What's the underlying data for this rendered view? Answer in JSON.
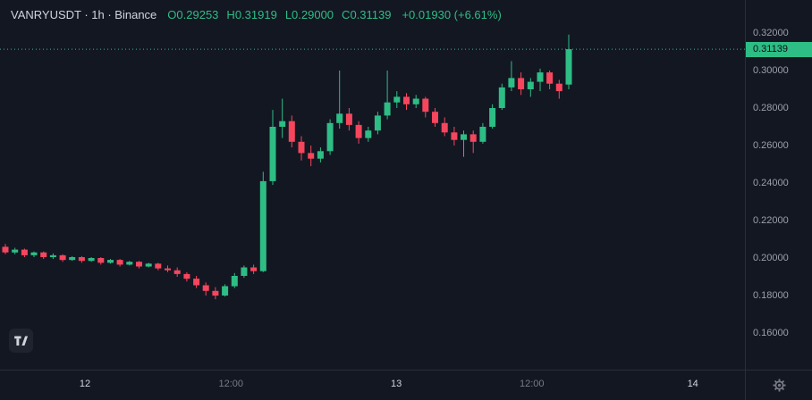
{
  "legend": {
    "title": "VANRYUSDT · 1h · Binance",
    "o_label": "O",
    "o": "0.29253",
    "h_label": "H",
    "h": "0.31919",
    "l_label": "L",
    "l": "0.29000",
    "c_label": "C",
    "c": "0.31139",
    "change": "+0.01930 (+6.61%)"
  },
  "colors": {
    "background": "#131722",
    "up": "#2ebd85",
    "down": "#f6465d",
    "axis_border": "#2a2e39",
    "axis_text": "#9aa0aa",
    "text": "#d1d4dc",
    "badge_text": "#0b0e11",
    "current_price_line": "#2ebd85"
  },
  "price_axis": {
    "last_price_label": "0.31139"
  },
  "icons": {
    "settings": "gear-icon",
    "logo": "tradingview-logo"
  },
  "chart_data": {
    "type": "candlestick",
    "title": "VANRYUSDT · 1h · Binance",
    "symbol": "VANRYUSDT",
    "interval": "1h",
    "exchange": "Binance",
    "last_bar": {
      "open": 0.29253,
      "high": 0.31919,
      "low": 0.29,
      "close": 0.31139,
      "change": "+0.01930",
      "change_pct": "+6.61%"
    },
    "current_price": 0.31139,
    "ylim": [
      0.1405,
      0.3376
    ],
    "grid": false,
    "price_ticks": [
      0.32,
      0.3,
      0.28,
      0.26,
      0.24,
      0.22,
      0.2,
      0.18,
      0.16
    ],
    "time_ticks": [
      {
        "label": "12",
        "pos": 0.114,
        "major": true
      },
      {
        "label": "12:00",
        "pos": 0.31,
        "major": false
      },
      {
        "label": "13",
        "pos": 0.532,
        "major": true
      },
      {
        "label": "12:00",
        "pos": 0.714,
        "major": false
      },
      {
        "label": "14",
        "pos": 0.93,
        "major": true
      }
    ],
    "candles": [
      [
        0.206,
        0.2075,
        0.202,
        0.203
      ],
      [
        0.203,
        0.2055,
        0.202,
        0.2045
      ],
      [
        0.2045,
        0.205,
        0.2005,
        0.2015
      ],
      [
        0.2015,
        0.2035,
        0.2005,
        0.203
      ],
      [
        0.203,
        0.2035,
        0.1995,
        0.2005
      ],
      [
        0.2005,
        0.2025,
        0.1995,
        0.2015
      ],
      [
        0.2015,
        0.202,
        0.198,
        0.199
      ],
      [
        0.199,
        0.201,
        0.1985,
        0.2005
      ],
      [
        0.2005,
        0.201,
        0.1975,
        0.1985
      ],
      [
        0.1985,
        0.2005,
        0.198,
        0.2
      ],
      [
        0.2,
        0.2005,
        0.1965,
        0.1975
      ],
      [
        0.1975,
        0.1995,
        0.197,
        0.199
      ],
      [
        0.199,
        0.1995,
        0.1955,
        0.1965
      ],
      [
        0.1965,
        0.1985,
        0.196,
        0.198
      ],
      [
        0.198,
        0.1985,
        0.1945,
        0.1955
      ],
      [
        0.1955,
        0.1975,
        0.195,
        0.197
      ],
      [
        0.197,
        0.1975,
        0.1935,
        0.1945
      ],
      [
        0.1945,
        0.196,
        0.1925,
        0.1935
      ],
      [
        0.1935,
        0.195,
        0.19,
        0.1915
      ],
      [
        0.1915,
        0.1925,
        0.1875,
        0.189
      ],
      [
        0.189,
        0.1905,
        0.184,
        0.1855
      ],
      [
        0.1855,
        0.187,
        0.18,
        0.1825
      ],
      [
        0.1825,
        0.1845,
        0.178,
        0.18
      ],
      [
        0.18,
        0.186,
        0.1795,
        0.185
      ],
      [
        0.185,
        0.192,
        0.184,
        0.1905
      ],
      [
        0.1905,
        0.196,
        0.1895,
        0.195
      ],
      [
        0.195,
        0.1965,
        0.1915,
        0.193
      ],
      [
        0.193,
        0.246,
        0.1925,
        0.241
      ],
      [
        0.241,
        0.279,
        0.239,
        0.27
      ],
      [
        0.27,
        0.285,
        0.264,
        0.273
      ],
      [
        0.273,
        0.276,
        0.259,
        0.262
      ],
      [
        0.262,
        0.265,
        0.252,
        0.256
      ],
      [
        0.256,
        0.26,
        0.249,
        0.253
      ],
      [
        0.253,
        0.259,
        0.251,
        0.257
      ],
      [
        0.257,
        0.274,
        0.255,
        0.272
      ],
      [
        0.272,
        0.3,
        0.269,
        0.277
      ],
      [
        0.277,
        0.28,
        0.268,
        0.271
      ],
      [
        0.271,
        0.273,
        0.261,
        0.264
      ],
      [
        0.264,
        0.27,
        0.262,
        0.268
      ],
      [
        0.268,
        0.278,
        0.266,
        0.276
      ],
      [
        0.276,
        0.3,
        0.274,
        0.283
      ],
      [
        0.283,
        0.289,
        0.28,
        0.286
      ],
      [
        0.286,
        0.288,
        0.279,
        0.282
      ],
      [
        0.282,
        0.287,
        0.28,
        0.285
      ],
      [
        0.285,
        0.286,
        0.275,
        0.278
      ],
      [
        0.278,
        0.28,
        0.27,
        0.272
      ],
      [
        0.272,
        0.275,
        0.265,
        0.267
      ],
      [
        0.267,
        0.27,
        0.26,
        0.263
      ],
      [
        0.263,
        0.268,
        0.254,
        0.266
      ],
      [
        0.266,
        0.268,
        0.256,
        0.262
      ],
      [
        0.262,
        0.272,
        0.261,
        0.27
      ],
      [
        0.27,
        0.282,
        0.269,
        0.28
      ],
      [
        0.28,
        0.293,
        0.279,
        0.291
      ],
      [
        0.291,
        0.305,
        0.289,
        0.296
      ],
      [
        0.296,
        0.299,
        0.287,
        0.29
      ],
      [
        0.29,
        0.296,
        0.286,
        0.294
      ],
      [
        0.294,
        0.301,
        0.289,
        0.299
      ],
      [
        0.299,
        0.3,
        0.29,
        0.293
      ],
      [
        0.293,
        0.295,
        0.285,
        0.289
      ],
      [
        0.29253,
        0.31919,
        0.29,
        0.31139
      ]
    ]
  }
}
